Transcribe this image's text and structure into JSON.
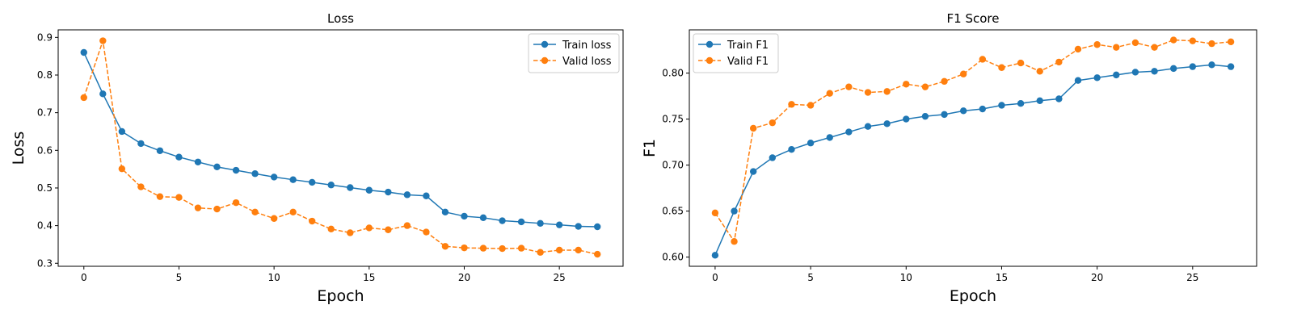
{
  "chart_data": [
    {
      "type": "line",
      "title": "Loss",
      "xlabel": "Epoch",
      "ylabel": "Loss",
      "xlim": [
        -1.35,
        28.35
      ],
      "ylim": [
        0.292,
        0.92
      ],
      "xticks": [
        0,
        5,
        10,
        15,
        20,
        25
      ],
      "yticks": [
        0.3,
        0.4,
        0.5,
        0.6,
        0.7,
        0.8,
        0.9
      ],
      "grid": false,
      "legend_position": "top-right",
      "x": [
        0,
        1,
        2,
        3,
        4,
        5,
        6,
        7,
        8,
        9,
        10,
        11,
        12,
        13,
        14,
        15,
        16,
        17,
        18,
        19,
        20,
        21,
        22,
        23,
        24,
        25,
        26,
        27
      ],
      "series": [
        {
          "name": "Train loss",
          "color": "#1f77b4",
          "dashed": false,
          "values": [
            0.86,
            0.75,
            0.65,
            0.618,
            0.599,
            0.582,
            0.569,
            0.556,
            0.547,
            0.538,
            0.529,
            0.522,
            0.515,
            0.508,
            0.501,
            0.494,
            0.489,
            0.482,
            0.479,
            0.436,
            0.425,
            0.421,
            0.413,
            0.41,
            0.406,
            0.402,
            0.398,
            0.397
          ]
        },
        {
          "name": "Valid loss",
          "color": "#ff7f0e",
          "dashed": true,
          "values": [
            0.74,
            0.891,
            0.551,
            0.503,
            0.477,
            0.475,
            0.447,
            0.444,
            0.461,
            0.436,
            0.419,
            0.436,
            0.412,
            0.391,
            0.381,
            0.394,
            0.389,
            0.4,
            0.383,
            0.345,
            0.341,
            0.34,
            0.339,
            0.34,
            0.329,
            0.335,
            0.335,
            0.324
          ]
        }
      ]
    },
    {
      "type": "line",
      "title": "F1 Score",
      "xlabel": "Epoch",
      "ylabel": "F1",
      "xlim": [
        -1.35,
        28.35
      ],
      "ylim": [
        0.59,
        0.847
      ],
      "xticks": [
        0,
        5,
        10,
        15,
        20,
        25
      ],
      "yticks": [
        0.6,
        0.65,
        0.7,
        0.75,
        0.8
      ],
      "grid": false,
      "legend_position": "top-left",
      "x": [
        0,
        1,
        2,
        3,
        4,
        5,
        6,
        7,
        8,
        9,
        10,
        11,
        12,
        13,
        14,
        15,
        16,
        17,
        18,
        19,
        20,
        21,
        22,
        23,
        24,
        25,
        26,
        27
      ],
      "series": [
        {
          "name": "Train F1",
          "color": "#1f77b4",
          "dashed": false,
          "values": [
            0.602,
            0.65,
            0.693,
            0.708,
            0.717,
            0.724,
            0.73,
            0.736,
            0.742,
            0.745,
            0.75,
            0.753,
            0.755,
            0.759,
            0.761,
            0.765,
            0.767,
            0.77,
            0.772,
            0.792,
            0.795,
            0.798,
            0.801,
            0.802,
            0.805,
            0.807,
            0.809,
            0.807
          ]
        },
        {
          "name": "Valid F1",
          "color": "#ff7f0e",
          "dashed": true,
          "values": [
            0.648,
            0.617,
            0.74,
            0.746,
            0.766,
            0.765,
            0.778,
            0.785,
            0.779,
            0.78,
            0.788,
            0.785,
            0.791,
            0.799,
            0.815,
            0.806,
            0.811,
            0.802,
            0.812,
            0.826,
            0.831,
            0.828,
            0.833,
            0.828,
            0.836,
            0.835,
            0.832,
            0.834
          ]
        }
      ]
    }
  ]
}
